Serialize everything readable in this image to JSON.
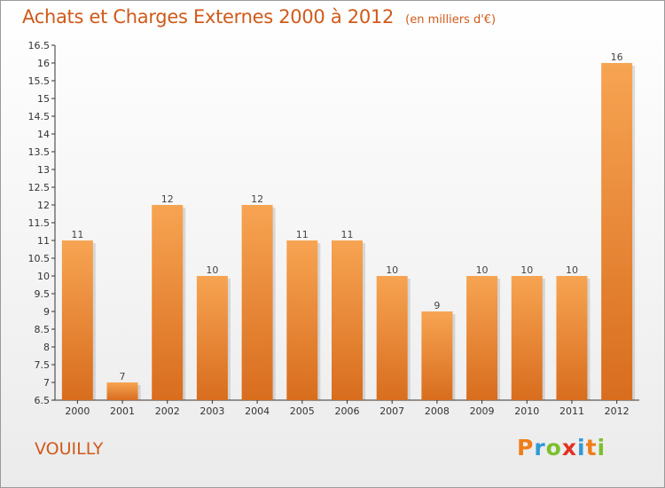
{
  "header": {
    "title": "Achats et Charges Externes 2000 à 2012",
    "unit": "(en milliers d'€)"
  },
  "footer": {
    "city": "VOUILLY",
    "logo": [
      "P",
      "r",
      "o",
      "x",
      "i",
      "t",
      "i"
    ]
  },
  "colors": {
    "title": "#d05a1a",
    "bar_top": "#f7a452",
    "bar_bottom": "#d86d1e",
    "logo": [
      "#ef7d1b",
      "#2e9ad6",
      "#7cbf2e",
      "#e03222",
      "#2e9ad6",
      "#ef7d1b",
      "#7cbf2e"
    ]
  },
  "chart_data": {
    "type": "bar",
    "title": "Achats et Charges Externes 2000 à 2012",
    "categories": [
      "2000",
      "2001",
      "2002",
      "2003",
      "2004",
      "2005",
      "2006",
      "2007",
      "2008",
      "2009",
      "2010",
      "2011",
      "2012"
    ],
    "values": [
      11,
      7,
      12,
      10,
      12,
      11,
      11,
      10,
      9,
      10,
      10,
      10,
      16
    ],
    "data_labels": [
      "11",
      "7",
      "12",
      "10",
      "12",
      "11",
      "11",
      "10",
      "9",
      "10",
      "10",
      "10",
      "16"
    ],
    "ylim": [
      6.5,
      16.5
    ],
    "yticks": [
      "6.5",
      "7",
      "7.5",
      "8",
      "8.5",
      "9",
      "9.5",
      "10",
      "10.5",
      "11",
      "11.5",
      "12",
      "12.5",
      "13",
      "13.5",
      "14",
      "14.5",
      "15",
      "15.5",
      "16",
      "16.5"
    ],
    "grid": false,
    "legend": "none"
  }
}
